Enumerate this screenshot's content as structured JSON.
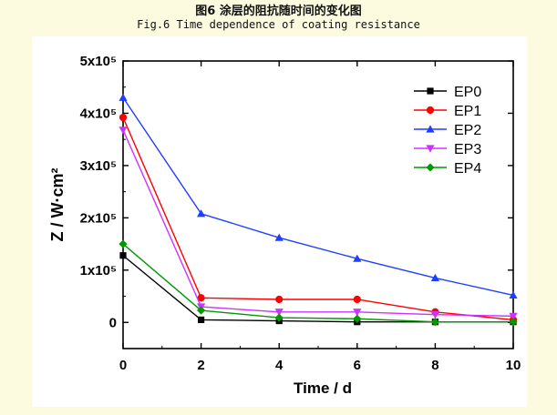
{
  "caption": {
    "cn": "图6 涂层的阻抗随时间的变化图",
    "en": "Fig.6 Time dependence of coating resistance"
  },
  "chart_data": {
    "type": "line",
    "title": "",
    "xlabel": "Time / d",
    "ylabel": "Z / W·cm²",
    "xlim": [
      0,
      10
    ],
    "ylim": [
      -50000,
      500000
    ],
    "xticks": [
      0,
      2,
      4,
      6,
      8,
      10
    ],
    "yticks": [
      {
        "value": 0,
        "label": "0"
      },
      {
        "value": 100000,
        "label": "1x10⁵"
      },
      {
        "value": 200000,
        "label": "2x10⁵"
      },
      {
        "value": 300000,
        "label": "3x10⁵"
      },
      {
        "value": 400000,
        "label": "4x10⁵"
      },
      {
        "value": 500000,
        "label": "5x10⁵"
      }
    ],
    "grid": false,
    "legend_position": "top-right",
    "x": [
      0,
      2,
      4,
      6,
      8,
      10
    ],
    "series": [
      {
        "name": "EP0",
        "color": "#000000",
        "marker": "square",
        "values": [
          128000,
          5000,
          3000,
          1000,
          1000,
          1000
        ]
      },
      {
        "name": "EP1",
        "color": "#ff0000",
        "marker": "circle",
        "values": [
          392000,
          47000,
          44000,
          44000,
          20000,
          5000
        ]
      },
      {
        "name": "EP2",
        "color": "#1f3fff",
        "marker": "triangle-up",
        "values": [
          430000,
          208000,
          162000,
          122000,
          85000,
          52000
        ]
      },
      {
        "name": "EP3",
        "color": "#cc33ff",
        "marker": "triangle-down",
        "values": [
          368000,
          30000,
          20000,
          20000,
          15000,
          12000
        ]
      },
      {
        "name": "EP4",
        "color": "#009900",
        "marker": "diamond",
        "values": [
          150000,
          23000,
          9000,
          7000,
          1000,
          1000
        ]
      }
    ]
  }
}
